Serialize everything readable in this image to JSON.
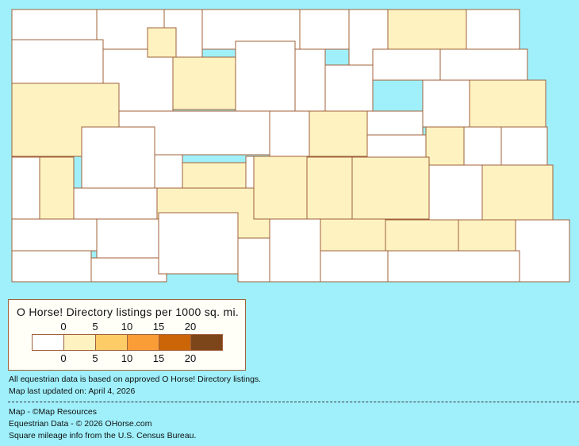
{
  "legend": {
    "title": "O Horse! Directory listings per 1000 sq. mi.",
    "ticks": [
      "0",
      "5",
      "10",
      "15",
      "20"
    ],
    "colors": [
      "#ffffff",
      "#fdf2c0",
      "#fdcc66",
      "#fb9d36",
      "#cc6508",
      "#7d451a"
    ]
  },
  "map": {
    "border_color": "#a0603a",
    "background": "#9ff0fb",
    "county_levels": [
      0,
      0,
      0,
      0,
      0,
      0,
      1,
      0,
      0,
      0,
      1,
      1,
      0,
      0,
      0,
      0,
      0,
      1,
      0,
      0,
      1,
      0,
      0,
      1,
      0,
      1,
      0,
      0,
      0,
      0,
      1,
      0,
      0,
      1,
      1,
      0,
      1,
      1,
      1,
      0,
      1,
      0,
      0,
      0,
      0,
      0,
      0,
      0,
      1,
      1,
      1,
      0,
      0,
      0
    ]
  },
  "notes": {
    "line1": "All equestrian data is based on approved O Horse! Directory listings.",
    "line2": "Map last updated on: April 4, 2026"
  },
  "credits": {
    "line1": "Map - ©Map Resources",
    "line2": "Equestrian Data - © 2026 OHorse.com",
    "line3": "Square mileage info from the U.S. Census Bureau."
  }
}
